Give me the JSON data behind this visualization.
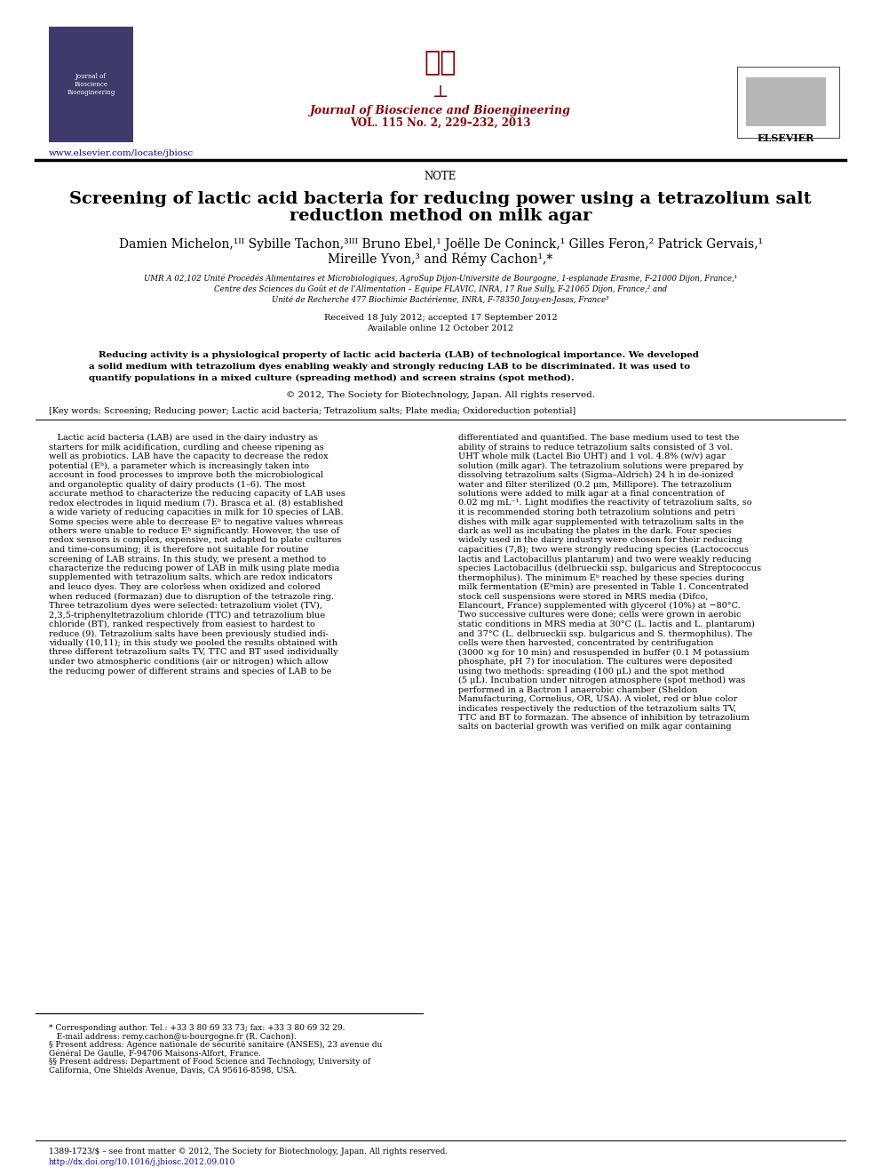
{
  "page_width": 9.92,
  "page_height": 13.23,
  "background_color": "#ffffff",
  "journal_name": "Journal of Bioscience and Bioengineering",
  "journal_volume": "VOL. 115 No. 2, 229–232, 2013",
  "journal_url": "www.elsevier.com/locate/jbiosc",
  "elsevier_text": "ELSEVIER",
  "section_label": "NOTE",
  "title_line1": "Screening of lactic acid bacteria for reducing power using a tetrazolium salt",
  "title_line2": "reduction method on milk agar",
  "author_line1": "Damien Michelon,¹˙ᴵᴵ Sybille Tachon,³˙˙ᴵᴵ Bruno Ebel,¹ Joëlle De Coninck,¹ Gilles Feron,² Patrick Gervais,¹",
  "author_line2": "Mireille Yvon,³ and Rémy Cachon¹,*",
  "affil1": "UMR A 02,102 Unité Procédés Alimentaires et Microbiologiques, AgroSup Dijon-Université de Bourgogne, 1-esplanade Erasme, F-21000 Dijon, France,¹",
  "affil2": "Centre des Sciences du Goût et de l’Alimentation – Equipe FLAVIC, INRA, 17 Rue Sully, F-21065 Dijon, France,² and",
  "affil3": "Unité de Recherche 477 Biochimie Bactérienne, INRA, F-78350 Jouy-en-Josas, France³",
  "received": "Received 18 July 2012; accepted 17 September 2012",
  "available": "Available online 12 October 2012",
  "copyright": "© 2012, The Society for Biotechnology, Japan. All rights reserved.",
  "keywords": "[Key words: Screening; Reducing power; Lactic acid bacteria; Tetrazolium salts; Plate media; Oxidoreduction potential]",
  "footnote1": "* Corresponding author. Tel.: +33 3 80 69 33 73; fax: +33 3 80 69 32 29.",
  "footnote2": "   E-mail address: remy.cachon@u-bourgogne.fr (R. Cachon).",
  "footnote3": "§ Present address: Agence nationale de sécurité sanitaire (ANSES), 23 avenue du Général De Gaulle, F-94706 Maisons-Alfort, France.",
  "footnote4": "§§ Present address: Department of Food Science and Technology, University of California, One Shields Avenue, Davis, CA 95616-8598, USA.",
  "footer1": "1389-1723/$ – see front matter © 2012, The Society for Biotechnology, Japan. All rights reserved.",
  "footer2": "http://dx.doi.org/10.1016/j.jbiosc.2012.09.010",
  "journal_color": "#8B0000",
  "link_color": "#0000bb"
}
